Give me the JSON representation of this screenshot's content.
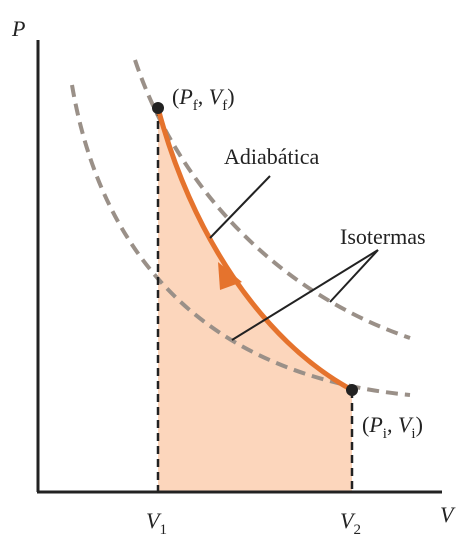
{
  "axes": {
    "y_label": "P",
    "x_label": "V"
  },
  "x_ticks": [
    {
      "parts": [
        "V",
        "1"
      ]
    },
    {
      "parts": [
        "V",
        "2"
      ]
    }
  ],
  "points": {
    "final": {
      "parts": [
        "(",
        "P",
        "f",
        ", ",
        "V",
        "f",
        ")"
      ]
    },
    "initial": {
      "parts": [
        "(",
        "P",
        "i",
        ", ",
        "V",
        "i",
        ")"
      ]
    }
  },
  "annotations": {
    "adiabatic": "Adiabática",
    "isotherms": "Isotermas"
  }
}
